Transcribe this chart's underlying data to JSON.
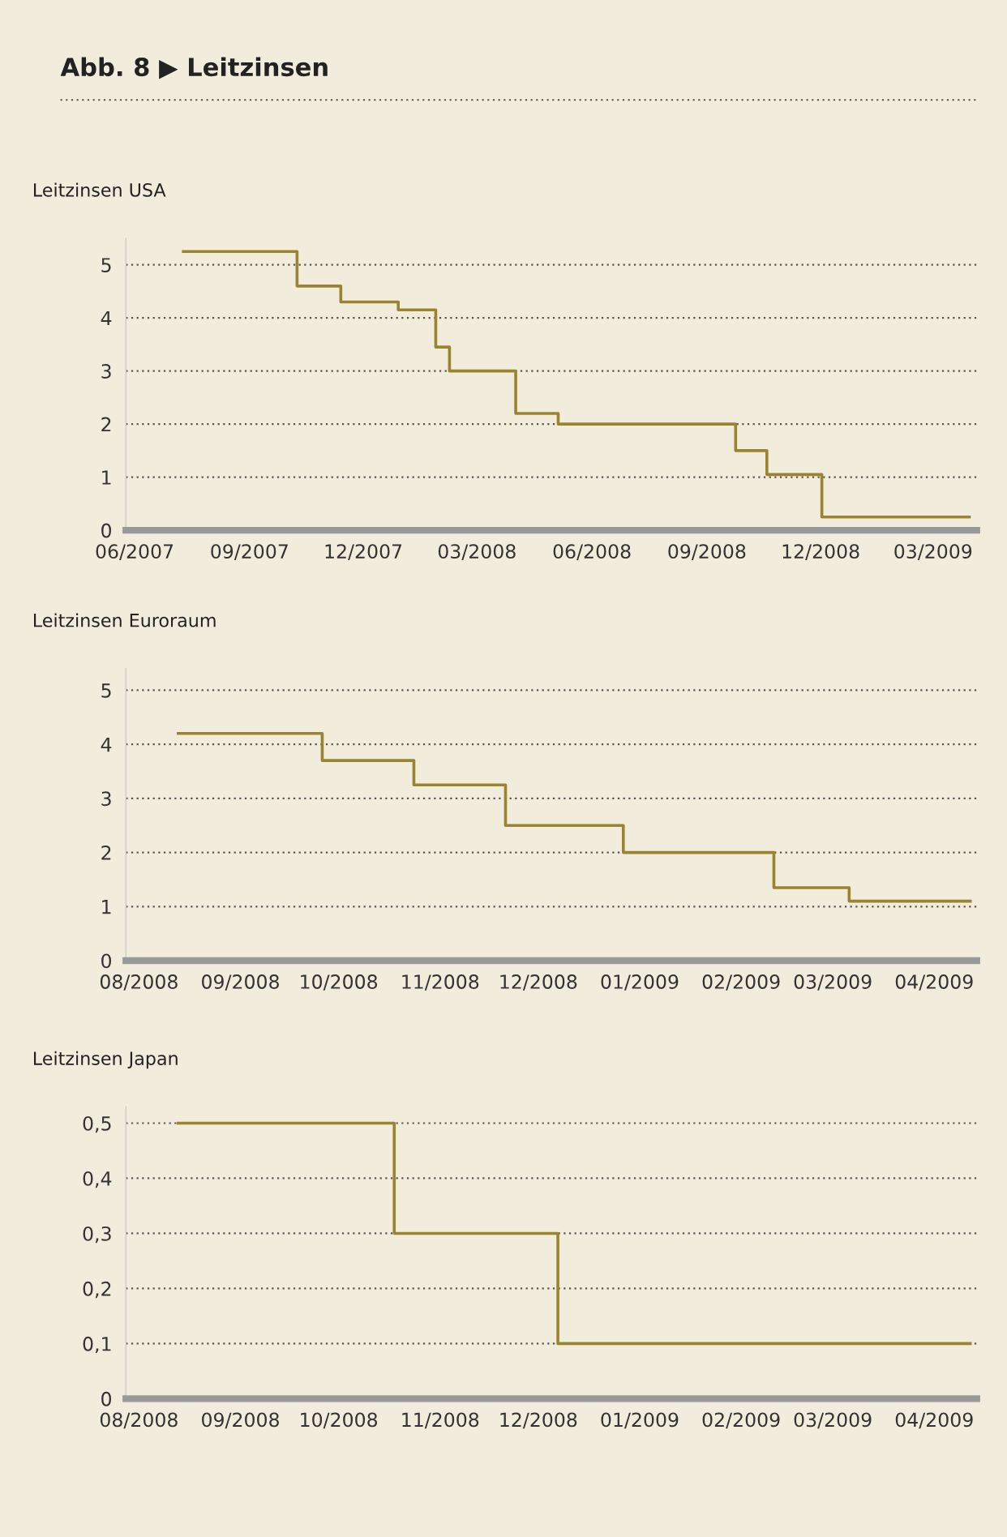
{
  "chart_data": [
    {
      "type": "step",
      "title": "Abb. 8 ▶ Leitzinsen",
      "subtitle": "Leitzinsen USA",
      "x": [
        "2007-07-10",
        "2007-10-09",
        "2007-11-13",
        "2007-12-29",
        "2008-01-28",
        "2008-02-08",
        "2008-04-01",
        "2008-05-05",
        "2008-09-24",
        "2008-10-19",
        "2008-12-02",
        "2009-03-30"
      ],
      "series": [
        {
          "color": "#9a8430",
          "values": [
            5.25,
            4.6,
            4.3,
            4.15,
            3.45,
            3.0,
            2.2,
            2.0,
            1.5,
            1.05,
            0.25,
            0.25
          ]
        }
      ],
      "xlim": [
        "2007-05-25",
        "2009-04-05"
      ],
      "xticks": [
        {
          "value": "2007-06-01",
          "label": "06/2007"
        },
        {
          "value": "2007-09-01",
          "label": "09/2007"
        },
        {
          "value": "2007-12-01",
          "label": "12/2007"
        },
        {
          "value": "2008-03-01",
          "label": "03/2008"
        },
        {
          "value": "2008-06-01",
          "label": "06/2008"
        },
        {
          "value": "2008-09-01",
          "label": "09/2008"
        },
        {
          "value": "2008-12-01",
          "label": "12/2008"
        },
        {
          "value": "2009-03-01",
          "label": "03/2009"
        }
      ],
      "ylim": [
        0,
        5.5
      ],
      "yticks": [
        0,
        1,
        2,
        3,
        4,
        5
      ],
      "grid": "y",
      "legend": false
    },
    {
      "type": "step",
      "subtitle": "Leitzinsen Euroraum",
      "x": [
        "2008-08-13",
        "2008-09-26",
        "2008-10-24",
        "2008-11-21",
        "2008-12-27",
        "2009-02-11",
        "2009-03-06",
        "2009-04-12"
      ],
      "series": [
        {
          "color": "#9a8430",
          "values": [
            4.2,
            3.7,
            3.25,
            2.5,
            2.0,
            1.35,
            1.1,
            1.1
          ]
        }
      ],
      "xlim": [
        "2008-07-28",
        "2009-04-14"
      ],
      "xticks": [
        {
          "value": "2008-08-01",
          "label": "08/2008"
        },
        {
          "value": "2008-09-01",
          "label": "09/2008"
        },
        {
          "value": "2008-10-01",
          "label": "10/2008"
        },
        {
          "value": "2008-11-01",
          "label": "11/2008"
        },
        {
          "value": "2008-12-01",
          "label": "12/2008"
        },
        {
          "value": "2009-01-01",
          "label": "01/2009"
        },
        {
          "value": "2009-02-01",
          "label": "02/2009"
        },
        {
          "value": "2009-03-01",
          "label": "03/2009"
        },
        {
          "value": "2009-04-01",
          "label": "04/2009"
        }
      ],
      "ylim": [
        0,
        5.4
      ],
      "yticks": [
        0,
        1,
        2,
        3,
        4,
        5
      ],
      "grid": "y",
      "legend": false
    },
    {
      "type": "step",
      "subtitle": "Leitzinsen Japan",
      "x": [
        "2008-08-13",
        "2008-10-18",
        "2008-12-07",
        "2009-04-12"
      ],
      "series": [
        {
          "color": "#9a8430",
          "values": [
            0.5,
            0.3,
            0.1,
            0.1
          ]
        }
      ],
      "xlim": [
        "2008-07-28",
        "2009-04-14"
      ],
      "xticks": [
        {
          "value": "2008-08-01",
          "label": "08/2008"
        },
        {
          "value": "2008-09-01",
          "label": "09/2008"
        },
        {
          "value": "2008-10-01",
          "label": "10/2008"
        },
        {
          "value": "2008-11-01",
          "label": "11/2008"
        },
        {
          "value": "2008-12-01",
          "label": "12/2008"
        },
        {
          "value": "2009-01-01",
          "label": "01/2009"
        },
        {
          "value": "2009-02-01",
          "label": "02/2009"
        },
        {
          "value": "2009-03-01",
          "label": "03/2009"
        },
        {
          "value": "2009-04-01",
          "label": "04/2009"
        }
      ],
      "ylim": [
        0,
        0.53
      ],
      "yticks": [
        {
          "value": 0,
          "label": "0"
        },
        {
          "value": 0.1,
          "label": "0,1"
        },
        {
          "value": 0.2,
          "label": "0,2"
        },
        {
          "value": 0.3,
          "label": "0,3"
        },
        {
          "value": 0.4,
          "label": "0,4"
        },
        {
          "value": 0.5,
          "label": "0,5"
        }
      ],
      "grid": "y",
      "legend": false
    }
  ]
}
